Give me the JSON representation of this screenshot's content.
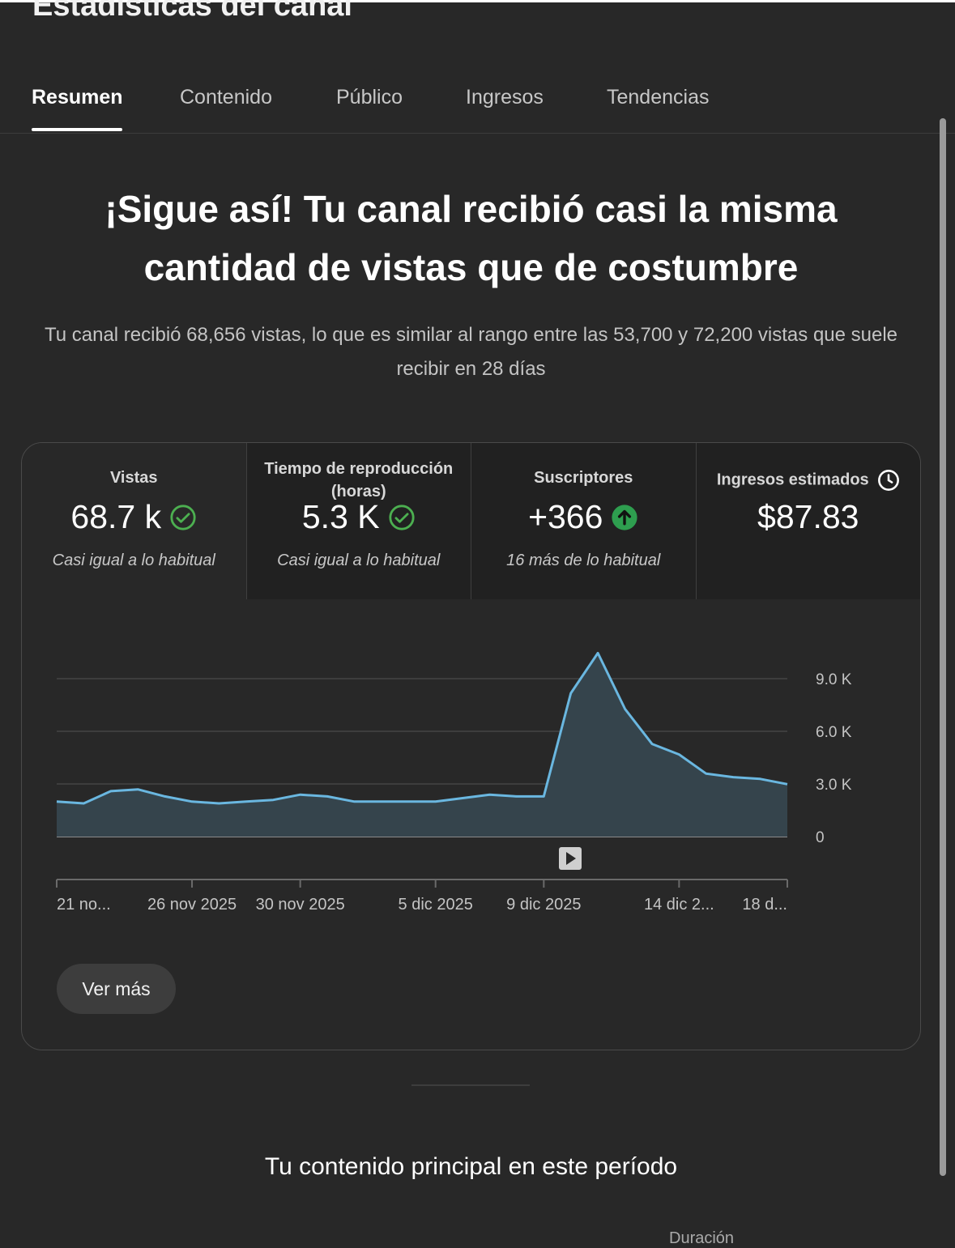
{
  "header": {
    "title": "Estadísticas del canal"
  },
  "tabs": [
    {
      "label": "Resumen",
      "active": true
    },
    {
      "label": "Contenido"
    },
    {
      "label": "Público"
    },
    {
      "label": "Ingresos"
    },
    {
      "label": "Tendencias"
    }
  ],
  "summary": {
    "headline": "¡Sigue así! Tu canal recibió casi la misma cantidad de vistas que de costumbre",
    "description": "Tu canal recibió 68,656 vistas, lo que es similar al rango entre las 53,700 y 72,200 vistas que suele recibir en 28 días"
  },
  "metrics": [
    {
      "label": "Vistas",
      "value": "68.7 k",
      "note": "Casi igual a lo habitual",
      "icon": "check-circle-icon",
      "icon_color": "#4caf50"
    },
    {
      "label": "Tiempo de reproducción (horas)",
      "value": "5.3 K",
      "note": "Casi igual a lo habitual",
      "icon": "check-circle-icon",
      "icon_color": "#4caf50"
    },
    {
      "label": "Suscriptores",
      "value": "+366",
      "note": "16 más de lo habitual",
      "icon": "arrow-up-circle-icon",
      "icon_color": "#2e9e4f"
    },
    {
      "label": "Ingresos estimados",
      "value": "$87.83",
      "note": "",
      "icon": "clock-icon"
    }
  ],
  "chart_data": {
    "type": "area",
    "series": [
      {
        "values": [
          2000,
          1900,
          2600,
          2700,
          2300,
          2000,
          1900,
          2000,
          2100,
          2400,
          2300,
          2000,
          2000,
          2000,
          2000,
          2200,
          2400,
          2300,
          2300,
          8200,
          10500,
          7300,
          5300,
          4700,
          3600,
          3400,
          3300,
          3000
        ]
      }
    ],
    "y_ticks": [
      "9.0 K",
      "6.0 K",
      "3.0 K",
      "0"
    ],
    "ylim": [
      0,
      12000
    ],
    "x_tick_labels": [
      "21 no...",
      "26 nov 2025",
      "30 nov 2025",
      "5 dic 2025",
      "9 dic 2025",
      "14 dic 2...",
      "18 d..."
    ],
    "x_tick_indices": [
      0,
      5,
      9,
      14,
      18,
      23,
      27
    ],
    "grid": true,
    "line_color": "#6ab7e0",
    "fill_color": "#35444c"
  },
  "actions": {
    "see_more": "Ver más"
  },
  "section": {
    "top_content_title": "Tu contenido principal en este período",
    "column_cut": "Duración"
  }
}
